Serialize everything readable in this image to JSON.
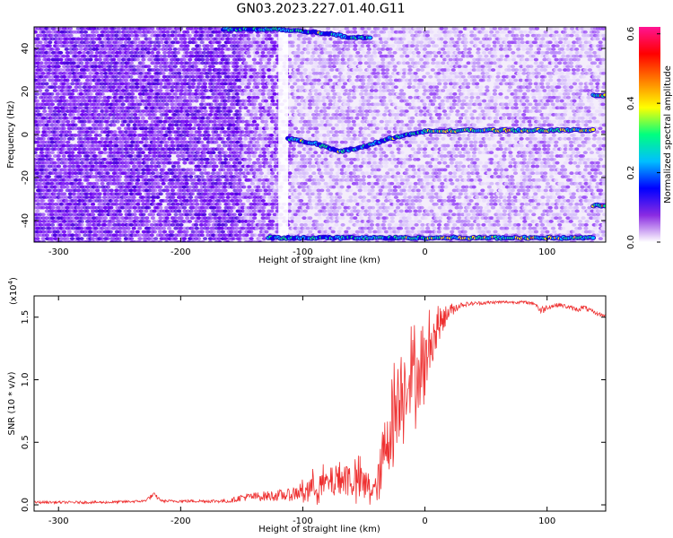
{
  "title": "GN03.2023.227.01.40.G11",
  "chart_data": [
    {
      "type": "heatmap",
      "title": "",
      "xlabel": "Height of straight line (km)",
      "ylabel": "Frequency (Hz)",
      "xlim": [
        -320,
        148
      ],
      "ylim": [
        -50,
        50
      ],
      "x_ticks": [
        "-300",
        "-200",
        "-100",
        "0",
        "100"
      ],
      "x_tick_values": [
        -300,
        -200,
        -100,
        0,
        100
      ],
      "y_ticks": [
        "-40",
        "-20",
        "0",
        "20",
        "40"
      ],
      "y_tick_values": [
        -40,
        -20,
        0,
        20,
        40
      ],
      "colorbar": {
        "label": "Normalized spectral amplitude",
        "ticks": [
          "0.0",
          "0.2",
          "0.4",
          "0.6"
        ],
        "tick_values": [
          0.0,
          0.2,
          0.4,
          0.6
        ],
        "range": [
          0.0,
          0.62
        ],
        "colors": [
          "#ffffff",
          "#8a2be2",
          "#0000ff",
          "#00bfff",
          "#00ff7f",
          "#ffff00",
          "#ff7f00",
          "#ff0000",
          "#ff1493"
        ]
      },
      "features": [
        {
          "kind": "tone",
          "x": [
            -112,
            -90,
            -70,
            -52,
            -30,
            0,
            50,
            100,
            138
          ],
          "y": [
            -2,
            -4,
            -8,
            -6,
            -2,
            1.5,
            2,
            2,
            2
          ],
          "amplitude": 0.45
        },
        {
          "kind": "tone",
          "x": [
            -128,
            -50,
            0,
            50,
            100,
            138
          ],
          "y": [
            -48,
            -48,
            -48,
            -48,
            -48,
            -48
          ],
          "amplitude": 0.4
        },
        {
          "kind": "tone",
          "x": [
            -165,
            -120,
            -80,
            -60,
            -45
          ],
          "y": [
            49,
            49,
            47,
            45,
            45
          ],
          "amplitude": 0.35
        },
        {
          "kind": "tone",
          "x": [
            138,
            148
          ],
          "y": [
            18,
            18
          ],
          "amplitude": 0.3
        },
        {
          "kind": "tone",
          "x": [
            138,
            148
          ],
          "y": [
            -33,
            -33
          ],
          "amplitude": 0.3
        },
        {
          "kind": "gap",
          "x": [
            -120,
            -112
          ],
          "value": 0.0
        }
      ]
    },
    {
      "type": "line",
      "title": "",
      "xlabel": "Height of straight line (km)",
      "ylabel": "SNR (10 * v/v)",
      "y_multiplier": "(x10",
      "y_multiplier_exponent": "4",
      "y_multiplier_close": ")",
      "xlim": [
        -320,
        148
      ],
      "ylim": [
        -0.05,
        1.67
      ],
      "x_ticks": [
        "-300",
        "-200",
        "-100",
        "0",
        "100"
      ],
      "x_tick_values": [
        -300,
        -200,
        -100,
        0,
        100
      ],
      "y_ticks": [
        "0.0",
        "0.5",
        "1.0",
        "1.5"
      ],
      "y_tick_values": [
        0.0,
        0.5,
        1.0,
        1.5
      ],
      "color": "#ee3030",
      "series": [
        {
          "x": [
            -320,
            -260,
            -230,
            -222,
            -215,
            -160,
            -150,
            -110,
            -100,
            -80,
            -70,
            -60,
            -50,
            -40,
            -35,
            -30,
            -25,
            -20,
            -15,
            -10,
            -5,
            0,
            5,
            10,
            20,
            30,
            40,
            60,
            80,
            90,
            95,
            100,
            110,
            125,
            130,
            140,
            148
          ],
          "y": [
            0.02,
            0.02,
            0.03,
            0.08,
            0.03,
            0.03,
            0.06,
            0.08,
            0.12,
            0.17,
            0.22,
            0.2,
            0.16,
            0.12,
            0.3,
            0.6,
            0.75,
            0.92,
            1.0,
            1.05,
            1.05,
            1.1,
            1.3,
            1.42,
            1.55,
            1.6,
            1.61,
            1.62,
            1.62,
            1.61,
            1.55,
            1.58,
            1.6,
            1.56,
            1.58,
            1.53,
            1.51
          ],
          "noise": [
            0.01,
            0.01,
            0.01,
            0.02,
            0.01,
            0.015,
            0.03,
            0.05,
            0.09,
            0.11,
            0.13,
            0.15,
            0.14,
            0.1,
            0.26,
            0.35,
            0.35,
            0.35,
            0.3,
            0.3,
            0.28,
            0.25,
            0.2,
            0.14,
            0.06,
            0.02,
            0.015,
            0.012,
            0.012,
            0.012,
            0.04,
            0.02,
            0.015,
            0.02,
            0.02,
            0.015,
            0.012
          ]
        }
      ]
    }
  ]
}
